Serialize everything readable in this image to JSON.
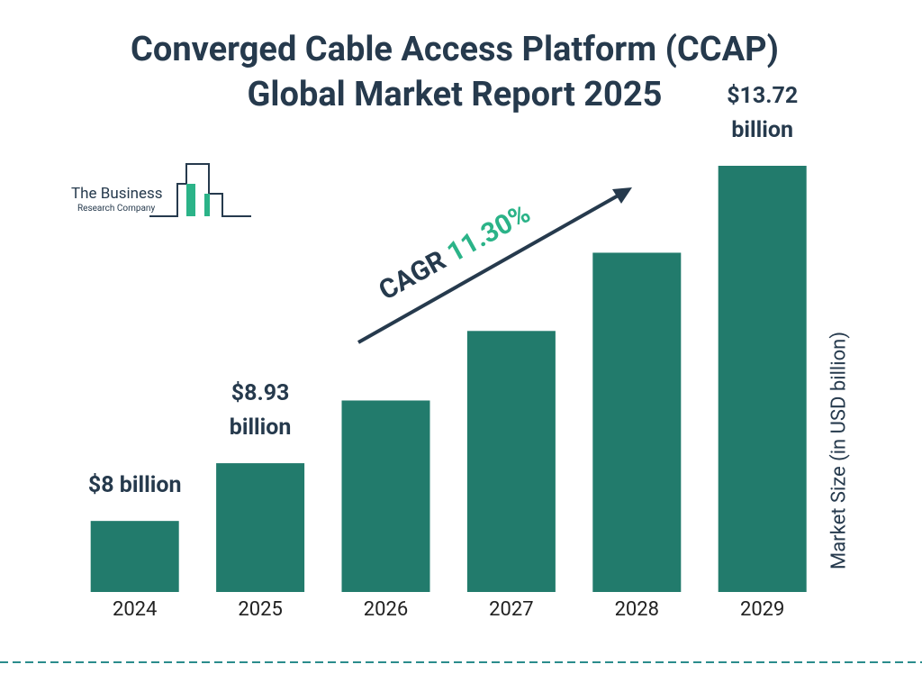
{
  "chart_data": {
    "type": "bar",
    "title": "Converged Cable Access Platform (CCAP) Global Market Report 2025",
    "categories": [
      "2024",
      "2025",
      "2026",
      "2027",
      "2028",
      "2029"
    ],
    "values": [
      8,
      8.93,
      9.94,
      11.06,
      12.32,
      13.72
    ],
    "value_labels": [
      "$8 billion",
      "$8.93 billion",
      null,
      null,
      null,
      "$13.72 billion"
    ],
    "color": "#227b6c",
    "y_axis_label": "Market Size (in USD billion)",
    "cagr_label": "CAGR",
    "cagr_value": "11.30%",
    "logo_line1": "The Business",
    "logo_line2": "Research Company"
  }
}
